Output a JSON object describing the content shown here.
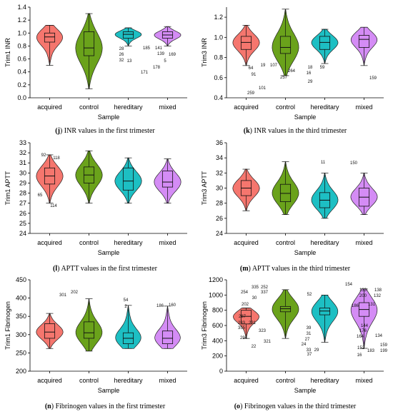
{
  "colors": {
    "acquired": "#f5766e",
    "control": "#6aa21b",
    "hereditary": "#1dbfc3",
    "mixed": "#d48cf5"
  },
  "chart_data": [
    {
      "panel": "j",
      "caption_label": "(j)",
      "caption_text": "INR values in the first trimester",
      "type": "violin",
      "ylabel": "Trim1 INR",
      "xlabel": "Sample",
      "categories": [
        "acquired",
        "control",
        "hereditary",
        "mixed"
      ],
      "ylim": [
        0.0,
        1.4
      ],
      "yticks": [
        "0.0",
        "0.2",
        "0.4",
        "0.6",
        "0.8",
        "1.0",
        "1.2",
        "1.4"
      ],
      "series": [
        {
          "name": "acquired",
          "min": 0.5,
          "q1": 0.86,
          "median": 0.94,
          "q3": 1.0,
          "max": 1.12
        },
        {
          "name": "control",
          "min": 0.14,
          "q1": 0.65,
          "median": 0.77,
          "q3": 1.02,
          "max": 1.3
        },
        {
          "name": "hereditary",
          "min": 0.8,
          "q1": 0.92,
          "median": 0.98,
          "q3": 1.02,
          "max": 1.08
        },
        {
          "name": "mixed",
          "min": 0.8,
          "q1": 0.92,
          "median": 0.97,
          "q3": 1.02,
          "max": 1.1
        }
      ],
      "annotations": [
        "28",
        "26",
        "32",
        "13",
        "185",
        "141",
        "139",
        "169",
        "178",
        "171",
        "5"
      ]
    },
    {
      "panel": "k",
      "caption_label": "(k)",
      "caption_text": "INR values in the third trimester",
      "type": "violin",
      "ylabel": "Trim3 INR",
      "xlabel": "Sample",
      "categories": [
        "acquired",
        "control",
        "hereditary",
        "mixed"
      ],
      "ylim": [
        0.4,
        1.3
      ],
      "yticks": [
        "0.4",
        "0.6",
        "0.8",
        "1.0",
        "1.2"
      ],
      "series": [
        {
          "name": "acquired",
          "min": 0.72,
          "q1": 0.88,
          "median": 0.95,
          "q3": 1.01,
          "max": 1.12
        },
        {
          "name": "control",
          "min": 0.62,
          "q1": 0.84,
          "median": 0.9,
          "q3": 1.01,
          "max": 1.28
        },
        {
          "name": "hereditary",
          "min": 0.74,
          "q1": 0.88,
          "median": 0.95,
          "q3": 1.01,
          "max": 1.08
        },
        {
          "name": "mixed",
          "min": 0.72,
          "q1": 0.9,
          "median": 0.98,
          "q3": 1.02,
          "max": 1.1
        }
      ],
      "annotations": [
        "19",
        "107",
        "64",
        "91",
        "264",
        "257",
        "101",
        "259",
        "18",
        "59",
        "16",
        "29",
        "159"
      ]
    },
    {
      "panel": "l",
      "caption_label": "(l)",
      "caption_text": "APTT values in the first trimester",
      "type": "violin",
      "ylabel": "Trim1 APTT",
      "xlabel": "Sample",
      "categories": [
        "acquired",
        "control",
        "hereditary",
        "mixed"
      ],
      "ylim": [
        24,
        33
      ],
      "yticks": [
        "24",
        "25",
        "26",
        "27",
        "28",
        "29",
        "30",
        "31",
        "32",
        "33"
      ],
      "series": [
        {
          "name": "acquired",
          "min": 27.0,
          "q1": 28.9,
          "median": 29.7,
          "q3": 30.5,
          "max": 31.8
        },
        {
          "name": "control",
          "min": 27.0,
          "q1": 29.0,
          "median": 29.8,
          "q3": 30.6,
          "max": 32.2
        },
        {
          "name": "hereditary",
          "min": 27.0,
          "q1": 28.3,
          "median": 29.2,
          "q3": 30.5,
          "max": 31.5
        },
        {
          "name": "mixed",
          "min": 27.0,
          "q1": 28.6,
          "median": 29.1,
          "q3": 30.2,
          "max": 31.4
        }
      ],
      "annotations": [
        "92",
        "118",
        "65",
        "114"
      ]
    },
    {
      "panel": "m",
      "caption_label": "(m)",
      "caption_text": "APTT values in the third trimester",
      "type": "violin",
      "ylabel": "Trim3 APTT",
      "xlabel": "Sample",
      "categories": [
        "acquired",
        "control",
        "hereditary",
        "mixed"
      ],
      "ylim": [
        24,
        36
      ],
      "yticks": [
        "24",
        "26",
        "28",
        "30",
        "32",
        "34",
        "36"
      ],
      "series": [
        {
          "name": "acquired",
          "min": 27.0,
          "q1": 29.0,
          "median": 30.0,
          "q3": 31.0,
          "max": 32.5
        },
        {
          "name": "control",
          "min": 26.5,
          "q1": 28.2,
          "median": 29.3,
          "q3": 30.5,
          "max": 33.5
        },
        {
          "name": "hereditary",
          "min": 26.0,
          "q1": 27.4,
          "median": 28.4,
          "q3": 29.4,
          "max": 32.0
        },
        {
          "name": "mixed",
          "min": 26.5,
          "q1": 27.6,
          "median": 28.8,
          "q3": 30.0,
          "max": 32.0
        }
      ],
      "annotations": [
        "11",
        "150"
      ]
    },
    {
      "panel": "n",
      "caption_label": "(n)",
      "caption_text": "Fibrinogen values in the first trimester",
      "type": "violin",
      "ylabel": "Trim1 Fibrinogen",
      "xlabel": "Sample",
      "categories": [
        "acquired",
        "control",
        "hereditary",
        "mixed"
      ],
      "ylim": [
        200,
        450
      ],
      "yticks": [
        "200",
        "250",
        "300",
        "350",
        "400",
        "450"
      ],
      "series": [
        {
          "name": "acquired",
          "min": 262,
          "q1": 290,
          "median": 307,
          "q3": 330,
          "max": 358
        },
        {
          "name": "control",
          "min": 255,
          "q1": 290,
          "median": 305,
          "q3": 335,
          "max": 398
        },
        {
          "name": "hereditary",
          "min": 262,
          "q1": 275,
          "median": 290,
          "q3": 305,
          "max": 380
        },
        {
          "name": "mixed",
          "min": 262,
          "q1": 275,
          "median": 290,
          "q3": 310,
          "max": 378
        }
      ],
      "annotations": [
        "301",
        "202",
        "54",
        "2",
        "186",
        "160"
      ]
    },
    {
      "panel": "o",
      "caption_label": "(o)",
      "caption_text": "Fibrinogen values in the third trimester",
      "type": "violin",
      "ylabel": "Trim3 Fibrinogen",
      "xlabel": "Sample",
      "categories": [
        "acquired",
        "control",
        "hereditary",
        "mixed"
      ],
      "ylim": [
        0,
        1200
      ],
      "yticks": [
        "0",
        "200",
        "400",
        "600",
        "800",
        "1000",
        "1200"
      ],
      "series": [
        {
          "name": "acquired",
          "min": 430,
          "q1": 620,
          "median": 720,
          "q3": 800,
          "max": 830
        },
        {
          "name": "control",
          "min": 430,
          "q1": 780,
          "median": 820,
          "q3": 850,
          "max": 1070
        },
        {
          "name": "hereditary",
          "min": 380,
          "q1": 740,
          "median": 790,
          "q3": 830,
          "max": 1000
        },
        {
          "name": "mixed",
          "min": 300,
          "q1": 720,
          "median": 810,
          "q3": 900,
          "max": 1080
        }
      ],
      "annotations": [
        "335",
        "252",
        "254",
        "337",
        "30",
        "202",
        "287",
        "283",
        "231",
        "355",
        "323",
        "294",
        "321",
        "22",
        "52",
        "39",
        "31",
        "27",
        "24",
        "33",
        "29",
        "37",
        "154",
        "133",
        "138",
        "200",
        "132",
        "186",
        "131",
        "144",
        "176",
        "164",
        "134",
        "152",
        "183",
        "159",
        "199",
        "16"
      ]
    }
  ]
}
